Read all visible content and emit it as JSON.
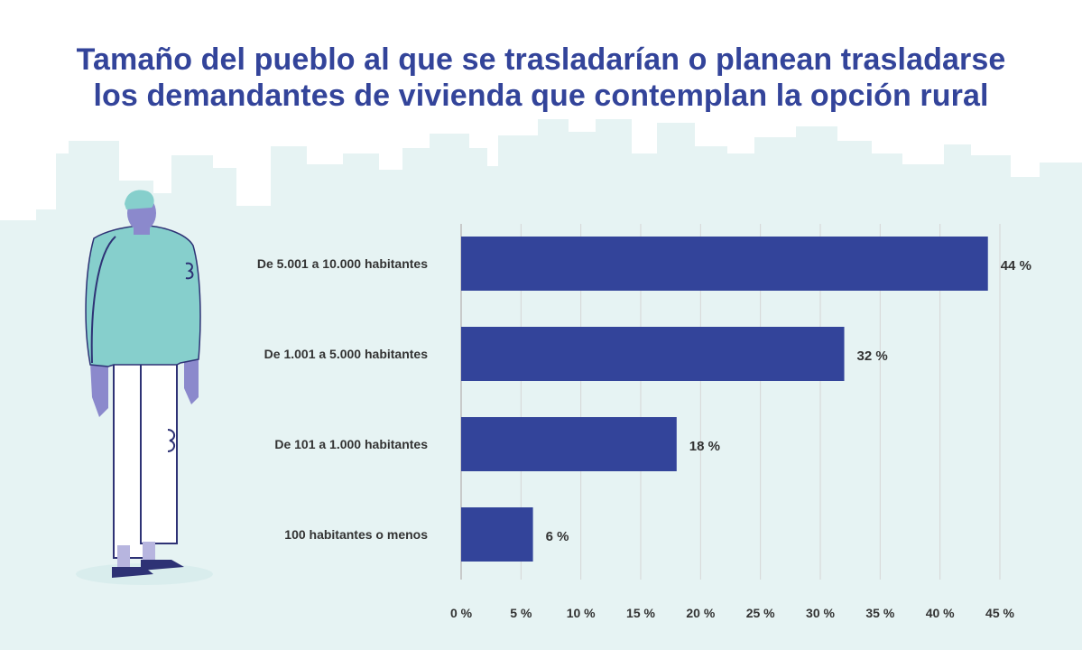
{
  "title_lines": [
    "Tamaño del pueblo al que se trasladarían o planean trasladarse",
    "los demandantes de vivienda que contemplan la opción rural"
  ],
  "colors": {
    "bar": "#33449a",
    "title": "#33449a",
    "skyline": "#e6f3f3",
    "grid": "#d6d6d6",
    "figure_sweater": "#86cfcc",
    "figure_skin": "#8b89cc",
    "figure_shoes": "#2e3275"
  },
  "illustration": {
    "person-icon": "person standing with sweater",
    "skyline-icon": "city skyline background"
  },
  "chart_data": {
    "type": "bar",
    "orientation": "horizontal",
    "title": "Tamaño del pueblo al que se trasladarían o planean trasladarse los demandantes de vivienda que contemplan la opción rural",
    "categories": [
      "De 5.001 a 10.000 habitantes",
      "De 1.001 a 5.000 habitantes",
      "De 101 a 1.000 habitantes",
      "100 habitantes o menos"
    ],
    "values": [
      44,
      32,
      18,
      6
    ],
    "value_labels": [
      "44 %",
      "32 %",
      "18 %",
      "6 %"
    ],
    "xlim": [
      0,
      45
    ],
    "x_ticks": [
      0,
      5,
      10,
      15,
      20,
      25,
      30,
      35,
      40,
      45
    ],
    "x_tick_labels": [
      "0 %",
      "5 %",
      "10 %",
      "15 %",
      "20 %",
      "25 %",
      "30 %",
      "35 %",
      "40 %",
      "45 %"
    ],
    "xlabel": "",
    "ylabel": "",
    "grid": true,
    "legend": "none"
  }
}
